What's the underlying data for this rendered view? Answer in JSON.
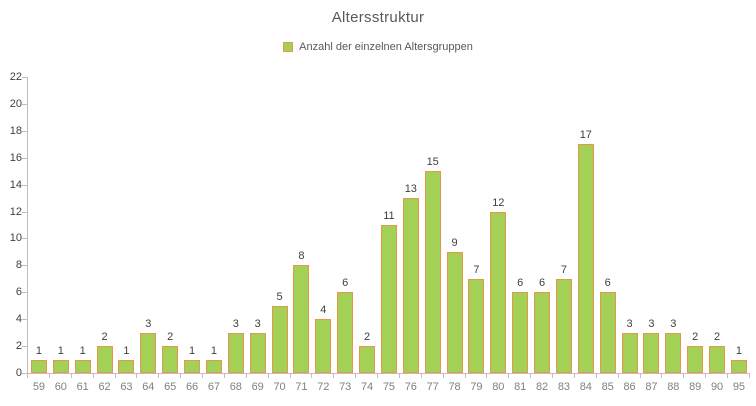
{
  "title": "Altersstruktur",
  "legend": {
    "label": "Anzahl der einzelnen Altersgruppen"
  },
  "colors": {
    "bar_fill": "#A3D155",
    "bar_border": "#E8964F",
    "axis_line": "#BFBFBF",
    "title_text": "#595959",
    "legend_text": "#595959",
    "x_tick_label": "#808080",
    "y_tick_label": "#404040",
    "value_label": "#404040",
    "background": "#FFFFFF"
  },
  "chart_data": {
    "type": "bar",
    "title": "Altersstruktur",
    "legend_entries": [
      "Anzahl der einzelnen Altersgruppen"
    ],
    "legend_position": "top",
    "categories": [
      "59",
      "60",
      "61",
      "62",
      "63",
      "64",
      "65",
      "66",
      "67",
      "68",
      "69",
      "70",
      "71",
      "72",
      "73",
      "74",
      "75",
      "76",
      "77",
      "78",
      "79",
      "80",
      "81",
      "82",
      "83",
      "84",
      "85",
      "86",
      "87",
      "88",
      "89",
      "90",
      "95"
    ],
    "values": [
      1,
      1,
      1,
      2,
      1,
      3,
      2,
      1,
      1,
      3,
      3,
      5,
      8,
      4,
      6,
      2,
      11,
      13,
      15,
      9,
      7,
      12,
      6,
      6,
      7,
      17,
      6,
      3,
      3,
      3,
      2,
      2,
      1
    ],
    "bar_labels_shown": true,
    "xlabel": "",
    "ylabel": "",
    "ylim": [
      0,
      22
    ],
    "ytick_step": 2,
    "yticks": [
      0,
      2,
      4,
      6,
      8,
      10,
      12,
      14,
      16,
      18,
      20,
      22
    ],
    "grid": false
  }
}
